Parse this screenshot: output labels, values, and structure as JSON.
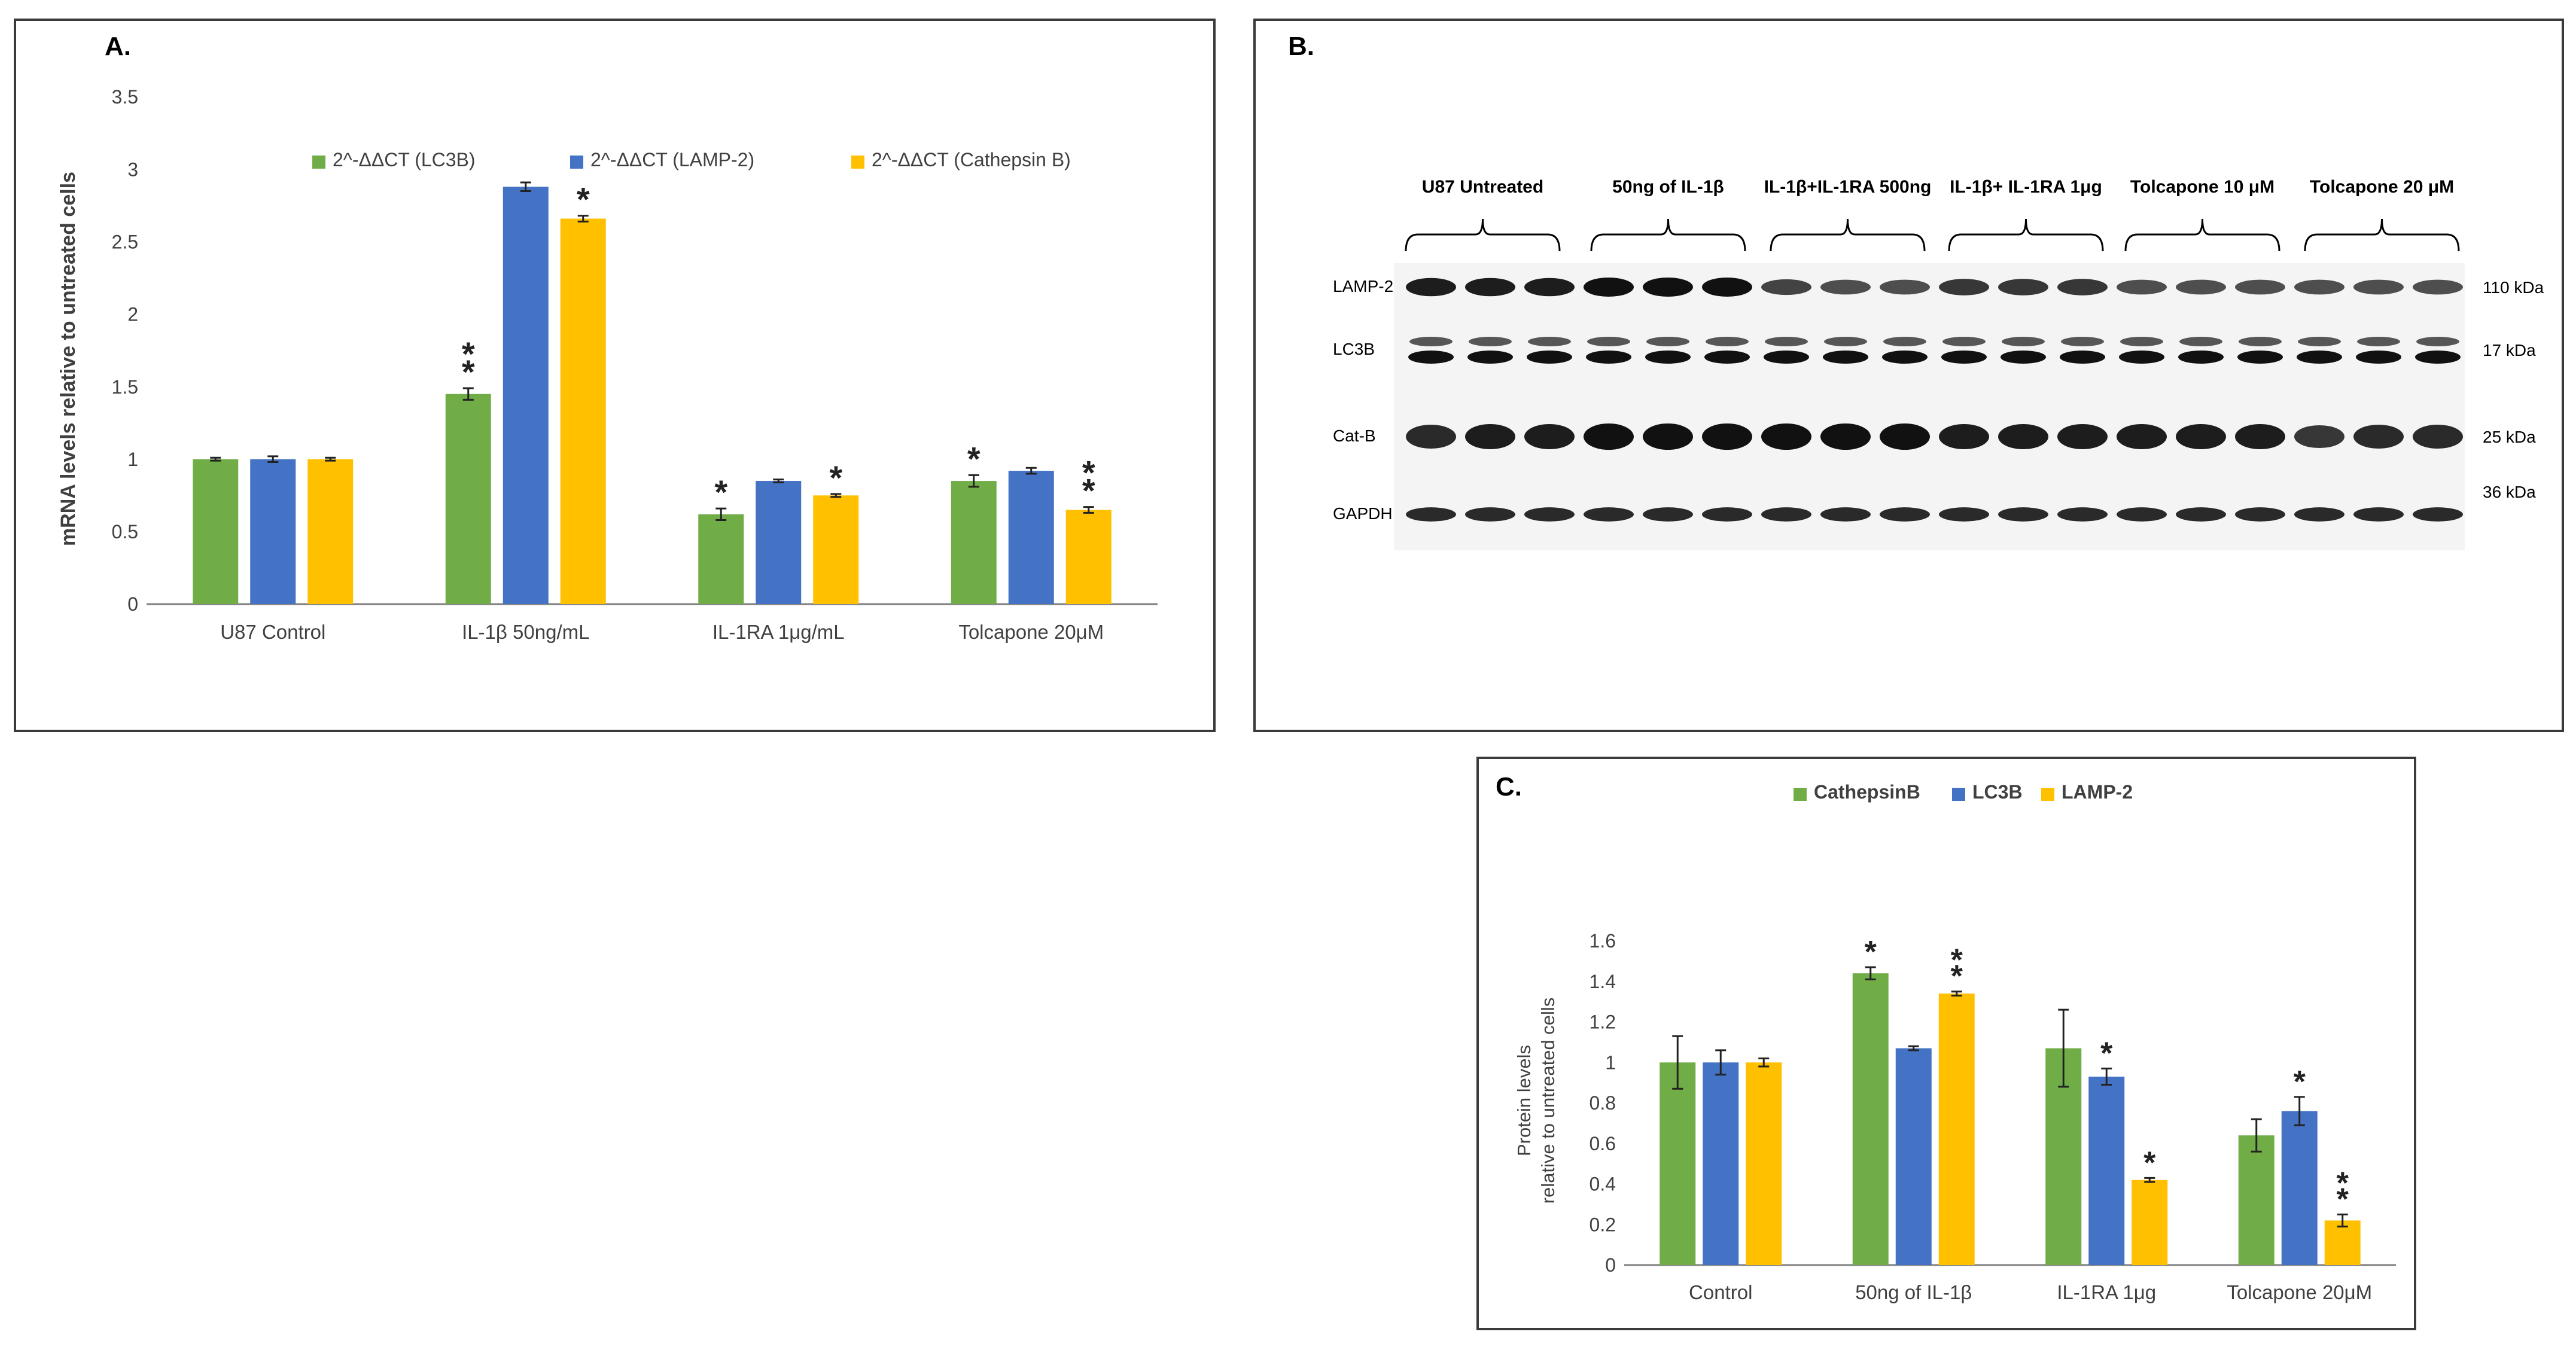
{
  "figure": {
    "panel_a": {
      "letter": "A."
    },
    "panel_b": {
      "letter": "B."
    },
    "panel_c": {
      "letter": "C."
    }
  },
  "colors": {
    "green": "#70ad47",
    "blue": "#4472c4",
    "yellow": "#ffc000"
  },
  "chart_data": [
    {
      "id": "A",
      "type": "bar",
      "title": "",
      "ylabel": "mRNA levels relative to untreated cells",
      "xlabel": "",
      "ylim": [
        0,
        3.5
      ],
      "ytick_step": 0.5,
      "yticks": [
        "0",
        "0.5",
        "1",
        "1.5",
        "2",
        "2.5",
        "3",
        "3.5"
      ],
      "legend_position": "top",
      "categories": [
        "U87 Control",
        "IL-1β 50ng/mL",
        "IL-1RA 1μg/mL",
        "Tolcapone 20μM"
      ],
      "series": [
        {
          "name": "2^-ΔΔCT (LC3B)",
          "color": "#70ad47",
          "values": [
            1.0,
            1.45,
            0.62,
            0.85
          ],
          "errors": [
            0.01,
            0.04,
            0.04,
            0.04
          ],
          "stars": [
            "",
            "**",
            "*",
            "*"
          ]
        },
        {
          "name": "2^-ΔΔCT (LAMP-2)",
          "color": "#4472c4",
          "values": [
            1.0,
            2.88,
            0.85,
            0.92
          ],
          "errors": [
            0.02,
            0.03,
            0.01,
            0.02
          ],
          "stars": [
            "",
            "",
            "",
            ""
          ]
        },
        {
          "name": "2^-ΔΔCT (Cathepsin B)",
          "color": "#ffc000",
          "values": [
            1.0,
            2.66,
            0.75,
            0.65
          ],
          "errors": [
            0.01,
            0.02,
            0.01,
            0.02
          ],
          "stars": [
            "",
            "*",
            "*",
            "**"
          ]
        }
      ]
    },
    {
      "id": "C",
      "type": "bar",
      "title": "",
      "ylabel": "Protein levels relative to untreated cells",
      "ylabel_lines": [
        "Protein levels",
        "relative to untreated cells"
      ],
      "xlabel": "",
      "ylim": [
        0,
        1.6
      ],
      "ytick_step": 0.2,
      "yticks": [
        "0",
        "0.2",
        "0.4",
        "0.6",
        "0.8",
        "1",
        "1.2",
        "1.4",
        "1.6"
      ],
      "legend_position": "top",
      "categories": [
        "Control",
        "50ng of IL-1β",
        "IL-1RA 1μg",
        "Tolcapone 20μM"
      ],
      "series": [
        {
          "name": "CathepsinB",
          "color": "#70ad47",
          "values": [
            1.0,
            1.44,
            1.07,
            0.64
          ],
          "errors": [
            0.13,
            0.03,
            0.19,
            0.08
          ],
          "stars": [
            "",
            "*",
            "",
            ""
          ]
        },
        {
          "name": "LC3B",
          "color": "#4472c4",
          "values": [
            1.0,
            1.07,
            0.93,
            0.76
          ],
          "errors": [
            0.06,
            0.01,
            0.04,
            0.07
          ],
          "stars": [
            "",
            "",
            "*",
            "*"
          ]
        },
        {
          "name": "LAMP-2",
          "color": "#ffc000",
          "values": [
            1.0,
            1.34,
            0.42,
            0.22
          ],
          "errors": [
            0.02,
            0.01,
            0.01,
            0.03
          ],
          "stars": [
            "",
            "**",
            "*",
            "**"
          ]
        }
      ]
    }
  ],
  "western_blot": {
    "groups": [
      "U87 Untreated",
      "50ng of IL-1β",
      "IL-1β+IL-1RA 500ng",
      "IL-1β+ IL-1RA 1μg",
      "Tolcapone 10 μM",
      "Tolcapone 20 μM"
    ],
    "rows": [
      {
        "protein": "LAMP-2",
        "weight": "110 kDa",
        "intensities": [
          0.9,
          0.9,
          0.9,
          1.0,
          1.0,
          1.0,
          0.6,
          0.5,
          0.5,
          0.7,
          0.7,
          0.7,
          0.5,
          0.5,
          0.5,
          0.5,
          0.5,
          0.5
        ]
      },
      {
        "protein": "LC3B",
        "weight": "17 kDa",
        "intensities": [
          0.8,
          0.8,
          0.8,
          0.8,
          0.8,
          0.8,
          0.8,
          0.8,
          0.8,
          0.8,
          0.8,
          0.8,
          0.8,
          0.8,
          0.8,
          0.8,
          0.8,
          0.8
        ]
      },
      {
        "protein": "Cat-B",
        "weight": "25 kDa",
        "intensities": [
          0.8,
          0.9,
          0.9,
          1.0,
          1.0,
          1.0,
          1.0,
          1.0,
          1.0,
          0.9,
          0.9,
          0.9,
          0.9,
          0.9,
          0.9,
          0.7,
          0.8,
          0.8
        ]
      },
      {
        "protein": "GAPDH",
        "weight": "36 kDa",
        "intensities": [
          0.8,
          0.8,
          0.8,
          0.8,
          0.8,
          0.8,
          0.8,
          0.8,
          0.8,
          0.8,
          0.8,
          0.8,
          0.8,
          0.8,
          0.8,
          0.8,
          0.8,
          0.8
        ]
      }
    ]
  }
}
